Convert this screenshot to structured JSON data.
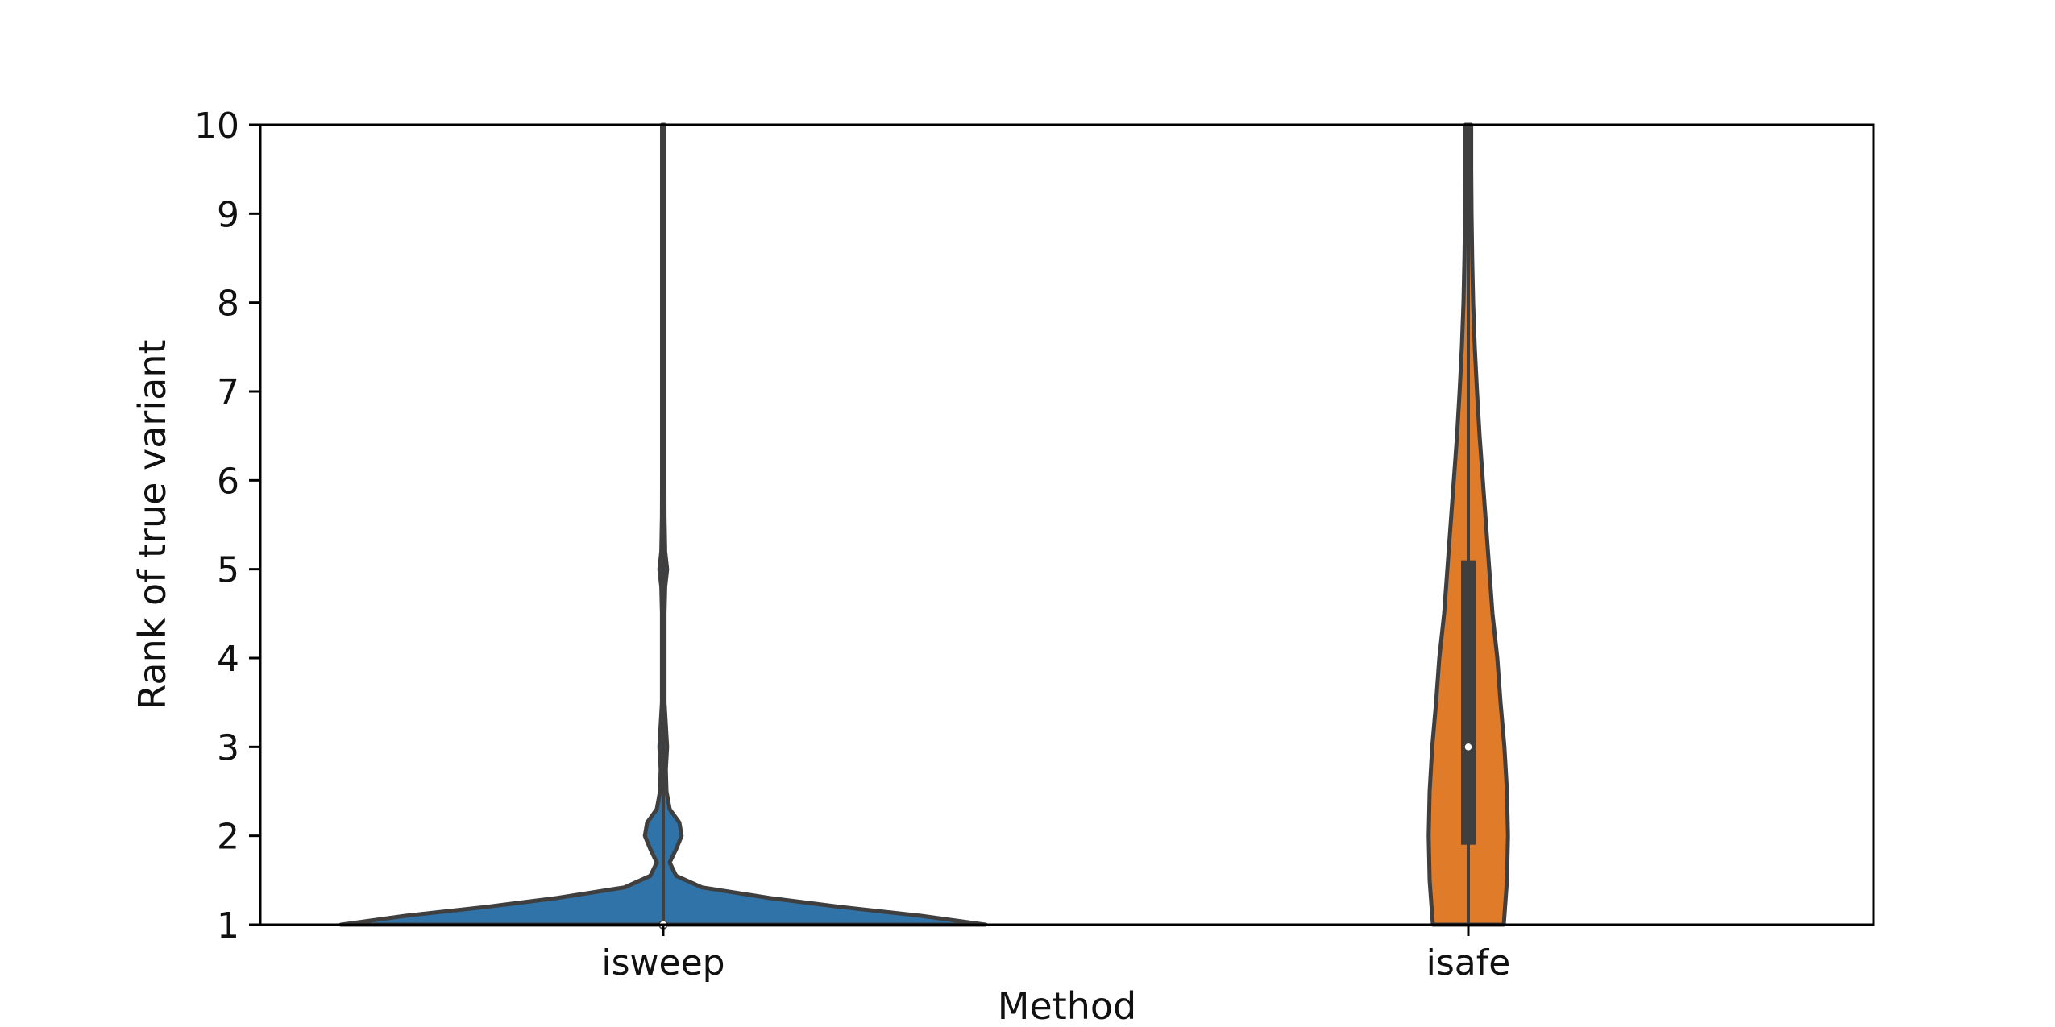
{
  "chart_data": {
    "type": "violin",
    "title": "",
    "xlabel": "Method",
    "ylabel": "Rank of true variant",
    "ylim": [
      1,
      10
    ],
    "yticks": [
      1,
      2,
      3,
      4,
      5,
      6,
      7,
      8,
      9,
      10
    ],
    "grid": false,
    "categories": [
      "isweep",
      "isafe"
    ],
    "violins": [
      {
        "category": "isweep",
        "color": "#2f73a8",
        "median": 1.0,
        "q1": 1.0,
        "q3": 1.0,
        "density_profile": [
          [
            1.0,
            1.0
          ],
          [
            1.1,
            0.8
          ],
          [
            1.2,
            0.55
          ],
          [
            1.3,
            0.33
          ],
          [
            1.42,
            0.12
          ],
          [
            1.55,
            0.04
          ],
          [
            1.7,
            0.02
          ],
          [
            1.85,
            0.04
          ],
          [
            2.0,
            0.057
          ],
          [
            2.15,
            0.05
          ],
          [
            2.3,
            0.02
          ],
          [
            2.5,
            0.01
          ],
          [
            2.75,
            0.008
          ],
          [
            3.0,
            0.012
          ],
          [
            3.25,
            0.008
          ],
          [
            3.5,
            0.004
          ],
          [
            4.0,
            0.004
          ],
          [
            4.5,
            0.004
          ],
          [
            4.8,
            0.006
          ],
          [
            5.0,
            0.012
          ],
          [
            5.2,
            0.006
          ],
          [
            5.6,
            0.004
          ],
          [
            6.0,
            0.003
          ],
          [
            7.0,
            0.003
          ],
          [
            8.0,
            0.003
          ],
          [
            9.0,
            0.003
          ],
          [
            10.0,
            0.003
          ]
        ]
      },
      {
        "category": "isafe",
        "color": "#e07b2a",
        "median": 3.0,
        "q1": 1.9,
        "q3": 5.1,
        "density_profile": [
          [
            1.0,
            0.11
          ],
          [
            1.5,
            0.12
          ],
          [
            2.0,
            0.123
          ],
          [
            2.5,
            0.12
          ],
          [
            3.0,
            0.112
          ],
          [
            3.5,
            0.1
          ],
          [
            4.0,
            0.09
          ],
          [
            4.5,
            0.075
          ],
          [
            5.0,
            0.065
          ],
          [
            5.5,
            0.055
          ],
          [
            6.0,
            0.045
          ],
          [
            6.5,
            0.035
          ],
          [
            7.0,
            0.027
          ],
          [
            7.5,
            0.02
          ],
          [
            8.0,
            0.015
          ],
          [
            8.5,
            0.012
          ],
          [
            9.0,
            0.01
          ],
          [
            9.5,
            0.009
          ],
          [
            10.0,
            0.009
          ]
        ]
      }
    ]
  }
}
